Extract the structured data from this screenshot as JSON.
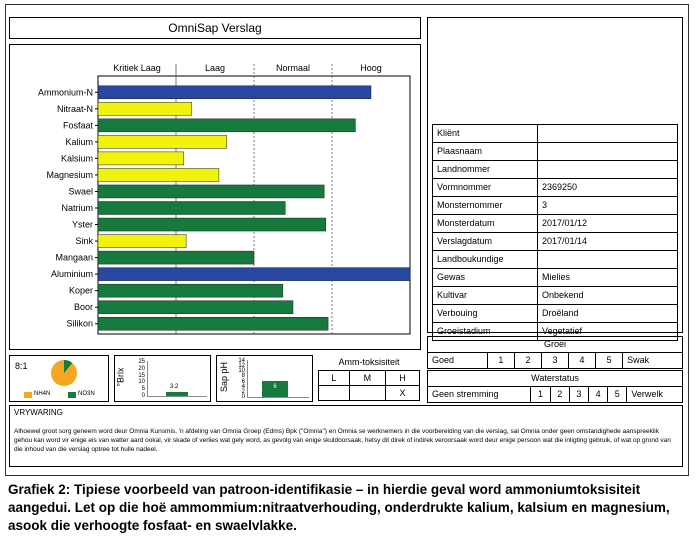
{
  "report": {
    "title": "OmniSap Verslag"
  },
  "chart_data": {
    "type": "bar",
    "orientation": "horizontal",
    "levels": [
      "Kritiek Laag",
      "Laag",
      "Normaal",
      "Hoog"
    ],
    "xlim": [
      0,
      4
    ],
    "bars": [
      {
        "label": "Ammonium-N",
        "value": 3.5,
        "color": "#2847a0"
      },
      {
        "label": "Nitraat-N",
        "value": 1.2,
        "color": "#f2f20f"
      },
      {
        "label": "Fosfaat",
        "value": 3.3,
        "color": "#157a3b"
      },
      {
        "label": "Kalium",
        "value": 1.65,
        "color": "#f2f20f"
      },
      {
        "label": "Kalsium",
        "value": 1.1,
        "color": "#f2f20f"
      },
      {
        "label": "Magnesium",
        "value": 1.55,
        "color": "#f2f20f"
      },
      {
        "label": "Swael",
        "value": 2.9,
        "color": "#157a3b"
      },
      {
        "label": "Natrium",
        "value": 2.4,
        "color": "#157a3b"
      },
      {
        "label": "Yster",
        "value": 2.92,
        "color": "#157a3b"
      },
      {
        "label": "Sink",
        "value": 1.13,
        "color": "#f2f20f"
      },
      {
        "label": "Mangaan",
        "value": 2.0,
        "color": "#157a3b"
      },
      {
        "label": "Aluminium",
        "value": 4.0,
        "color": "#2847a0"
      },
      {
        "label": "Koper",
        "value": 2.37,
        "color": "#157a3b"
      },
      {
        "label": "Boor",
        "value": 2.5,
        "color": "#157a3b"
      },
      {
        "label": "Silikon",
        "value": 2.95,
        "color": "#157a3b"
      }
    ]
  },
  "info": [
    {
      "label": "Kliënt",
      "value": ""
    },
    {
      "label": "Plaasnaam",
      "value": ""
    },
    {
      "label": "Landnommer",
      "value": ""
    },
    {
      "label": "Vormnommer",
      "value": "2369250"
    },
    {
      "label": "Monsternommer",
      "value": "3"
    },
    {
      "label": "Monsterdatum",
      "value": "2017/01/12"
    },
    {
      "label": "Verslagdatum",
      "value": "2017/01/14"
    },
    {
      "label": "Landboukundige",
      "value": ""
    },
    {
      "label": "Gewas",
      "value": "Mielies"
    },
    {
      "label": "Kultivar",
      "value": "Onbekend"
    },
    {
      "label": "Verbouing",
      "value": "Droëland"
    },
    {
      "label": "Groeistadium",
      "value": "Vegetatief"
    }
  ],
  "ratio": {
    "label": "8:1",
    "nh4_fraction": 0.89,
    "nh4_label": "NH4N",
    "no3_label": "NO3N",
    "nh4_color": "#f5a623",
    "no3_color": "#157a3b"
  },
  "brix": {
    "axis_label": "°Brix",
    "ticks": [
      "25",
      "20",
      "15",
      "10",
      "5",
      "0"
    ],
    "value": "3.2",
    "fraction": 0.128
  },
  "ph": {
    "axis_label": "Sap pH",
    "ticks": [
      "14",
      "12",
      "10",
      "8",
      "6",
      "4",
      "2",
      "0"
    ],
    "value": "6",
    "fraction": 0.43
  },
  "amm": {
    "title": "Amm-toksisiteit",
    "cols": [
      "L",
      "M",
      "H"
    ],
    "marks": [
      "",
      "",
      "X"
    ]
  },
  "groei": {
    "title": "Groei",
    "left": "Goed",
    "nums": [
      "1",
      "2",
      "3",
      "4",
      "5"
    ],
    "right": "Swak"
  },
  "water": {
    "title": "Waterstatus",
    "left": "Geen stremming",
    "nums": [
      "1",
      "2",
      "3",
      "4",
      "5"
    ],
    "right": "Verwelk"
  },
  "warning": {
    "title": "VRYWARING",
    "text": "Alhoewel groot sorg geneem word deur Omnia Kunsmis, 'n afdeling van Omnia Groep (Edms) Bpk (\"Omnia\") en Omnia se werknemers in die voorbereiding van die verslag, sal Omnia onder geen omstandighede aanspreeklik gehou kan word vir enige eis van watter aard ookal, vir skade of verlies wat gely word, as gevolg van enige skuldoorsaak, hetsy dit direk of indirek veroorsaak word deur enige persoon wat die inligting gebruik, of wat op grond van die inhoud van die verslag optree tot hulle nadeel."
  },
  "caption": "Grafiek 2: Tipiese voorbeeld van patroon-identifikasie – in hierdie geval word ammoniumtoksisiteit aangedui. Let op die hoë ammommium:nitraatverhouding, onderdrukte kalium, kalsium en magnesium, asook die verhoogte fosfaat- en swaelvlakke."
}
